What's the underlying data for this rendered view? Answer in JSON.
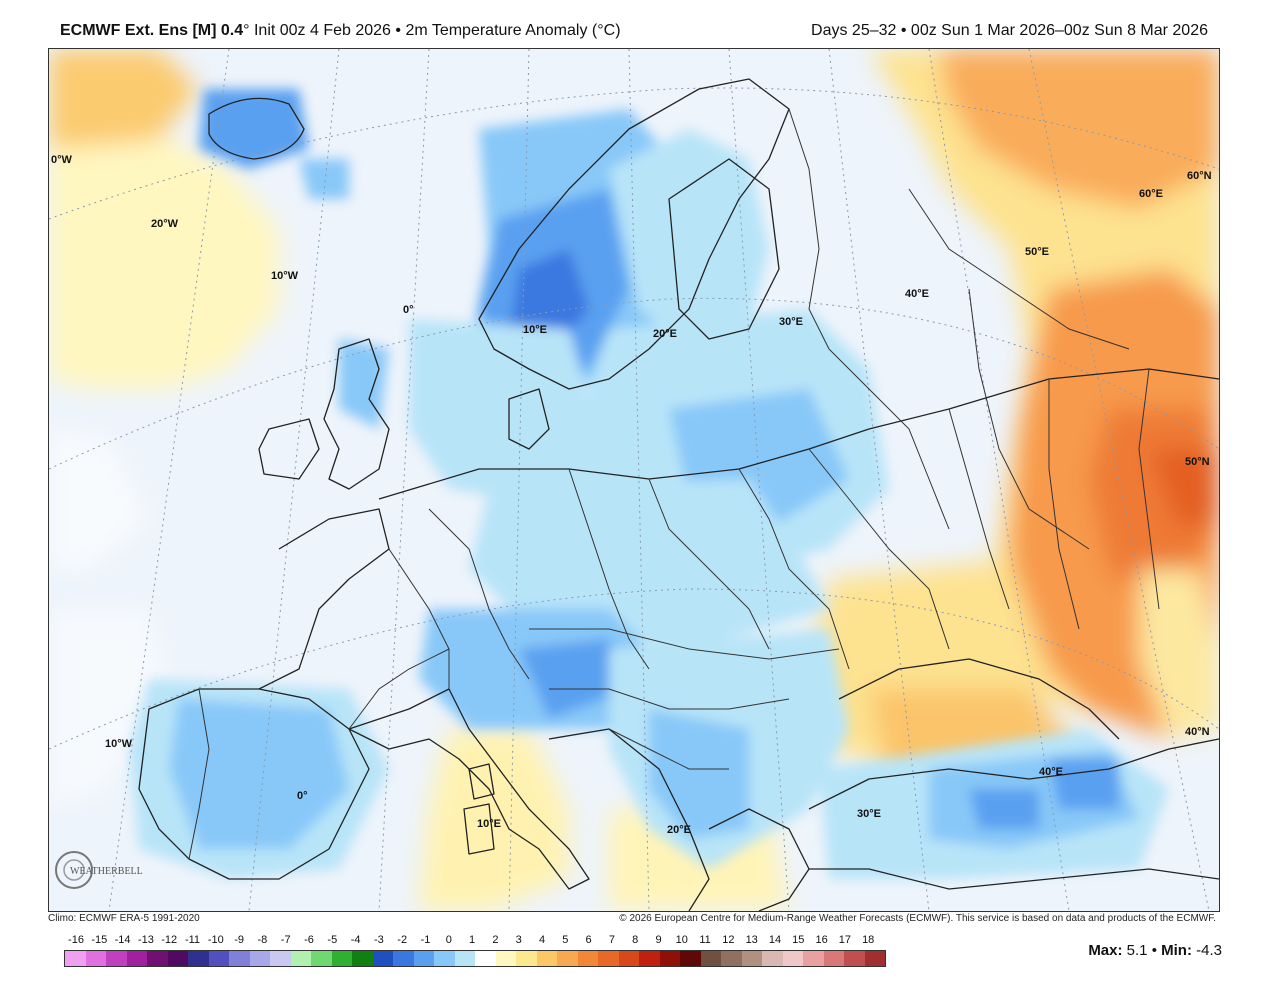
{
  "header": {
    "model": "ECMWF Ext. Ens [M] 0.4",
    "init": "° Init 00z 4 Feb 2026 • 2m Temperature Anomaly (°C)",
    "period": "Days 25–32 • 00z Sun 1 Mar 2026–00z Sun 8 Mar 2026"
  },
  "credits": {
    "climo": "Climo: ECMWF ERA-5 1991-2020",
    "copyright": "© 2026 European Centre for Medium-Range Weather Forecasts (ECMWF). This service is based on data and products of the ECMWF."
  },
  "stats": {
    "max_label": "Max:",
    "max_value": "5.1",
    "separator": "•",
    "min_label": "Min:",
    "min_value": "-4.3"
  },
  "logo_text": "WEATHERBELL",
  "map_labels": {
    "lon_30w": "0°W",
    "lon_20w": "20°W",
    "lon_10w": "10°W",
    "lon_0_north": "0°",
    "lon_10e_north": "10°E",
    "lon_20e_north": "20°E",
    "lon_30e_north": "30°E",
    "lon_40e_north": "40°E",
    "lon_50e": "50°E",
    "lon_60e": "60°E",
    "lat_60n": "60°N",
    "lat_50n": "50°N",
    "lat_40n": "40°N",
    "lon_10w_south": "10°W",
    "lon_0_south": "0°",
    "lon_10e_south": "10°E",
    "lon_20e_south": "20°E",
    "lon_30e_south": "30°E",
    "lon_40e_south": "40°E"
  },
  "colorbar": {
    "labels": [
      "-16",
      "-15",
      "-14",
      "-13",
      "-12",
      "-11",
      "-10",
      "-9",
      "-8",
      "-7",
      "-6",
      "-5",
      "-4",
      "-3",
      "-2",
      "-1",
      "0",
      "1",
      "2",
      "3",
      "4",
      "5",
      "6",
      "7",
      "8",
      "9",
      "10",
      "11",
      "12",
      "13",
      "14",
      "15",
      "16",
      "17",
      "18"
    ],
    "colors": [
      "#f0a0f0",
      "#e070e0",
      "#c040c0",
      "#a020a0",
      "#701070",
      "#500a60",
      "#303090",
      "#5050c0",
      "#8080d8",
      "#a8a8e8",
      "#c8c8f0",
      "#b0f0b0",
      "#70d870",
      "#30b030",
      "#108010",
      "#2050c0",
      "#3a78e0",
      "#5aa0f0",
      "#88c8f8",
      "#b8e4f8",
      "#ffffff",
      "#fff8c0",
      "#fde890",
      "#fbc868",
      "#f8a850",
      "#f08838",
      "#e86828",
      "#d84818",
      "#c02010",
      "#901008",
      "#600808",
      "#705040",
      "#907060",
      "#b09080",
      "#d8b8b0",
      "#f0c8c8",
      "#e8a0a0",
      "#d87878",
      "#c05050",
      "#a03030"
    ]
  }
}
